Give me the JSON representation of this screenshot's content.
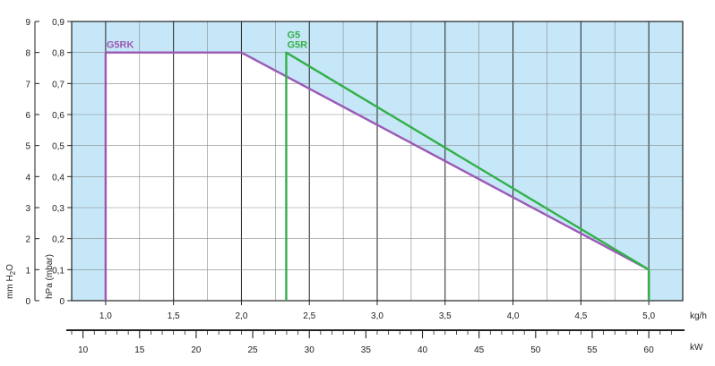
{
  "chart_data": {
    "type": "line",
    "x_unit": "kg/h",
    "secondary_x_unit": "kW",
    "y_left_outer_label": "mm H2O",
    "y_left_inner_label": "hPa (mbar)",
    "xlim": [
      0.75,
      5.25
    ],
    "ylim_hpa": [
      0,
      0.9
    ],
    "ylim_mmh2o": [
      0,
      9
    ],
    "x_ticks": [
      {
        "v": 1.0,
        "label": "1,0"
      },
      {
        "v": 1.5,
        "label": "1,5"
      },
      {
        "v": 2.0,
        "label": "2,0"
      },
      {
        "v": 2.5,
        "label": "2,5"
      },
      {
        "v": 3.0,
        "label": "3,0"
      },
      {
        "v": 3.5,
        "label": "3,5"
      },
      {
        "v": 4.0,
        "label": "4,0"
      },
      {
        "v": 4.5,
        "label": "4,5"
      },
      {
        "v": 5.0,
        "label": "5,0"
      }
    ],
    "y_ticks_hpa": [
      {
        "v": 0,
        "label": "0"
      },
      {
        "v": 0.1,
        "label": "0,1"
      },
      {
        "v": 0.2,
        "label": "0,2"
      },
      {
        "v": 0.3,
        "label": "0,3"
      },
      {
        "v": 0.4,
        "label": "0,4"
      },
      {
        "v": 0.5,
        "label": "0,5"
      },
      {
        "v": 0.6,
        "label": "0,6"
      },
      {
        "v": 0.7,
        "label": "0,7"
      },
      {
        "v": 0.8,
        "label": "0,8"
      },
      {
        "v": 0.9,
        "label": "0,9"
      }
    ],
    "y_ticks_mmh2o": [
      {
        "v": 0,
        "label": "0"
      },
      {
        "v": 1,
        "label": "1"
      },
      {
        "v": 2,
        "label": "2"
      },
      {
        "v": 3,
        "label": "3"
      },
      {
        "v": 4,
        "label": "4"
      },
      {
        "v": 5,
        "label": "5"
      },
      {
        "v": 6,
        "label": "6"
      },
      {
        "v": 7,
        "label": "7"
      },
      {
        "v": 8,
        "label": "8"
      },
      {
        "v": 9,
        "label": "9"
      }
    ],
    "kw_ticks": [
      {
        "kw": 10,
        "label": "10"
      },
      {
        "kw": 15,
        "label": "15"
      },
      {
        "kw": 20,
        "label": "20"
      },
      {
        "kw": 25,
        "label": "25"
      },
      {
        "kw": 30,
        "label": "30"
      },
      {
        "kw": 35,
        "label": "35"
      },
      {
        "kw": 40,
        "label": "40"
      },
      {
        "kw": 45,
        "label": "45"
      },
      {
        "kw": 50,
        "label": "50"
      },
      {
        "kw": 55,
        "label": "55"
      },
      {
        "kw": 60,
        "label": "60"
      }
    ],
    "kw_per_kgh": 12,
    "series": [
      {
        "name": "G5RK",
        "color": "#9b59b6",
        "points": [
          [
            1.0,
            0
          ],
          [
            1.0,
            0.8
          ],
          [
            2.0,
            0.8
          ],
          [
            5.0,
            0.1
          ],
          [
            5.0,
            0
          ]
        ]
      },
      {
        "name": "G5\nG5R",
        "color": "#33b04a",
        "points": [
          [
            2.33,
            0
          ],
          [
            2.33,
            0.8
          ],
          [
            5.0,
            0.1
          ],
          [
            5.0,
            0
          ]
        ]
      }
    ],
    "background_color": "#c6e7f7",
    "grid": true
  }
}
